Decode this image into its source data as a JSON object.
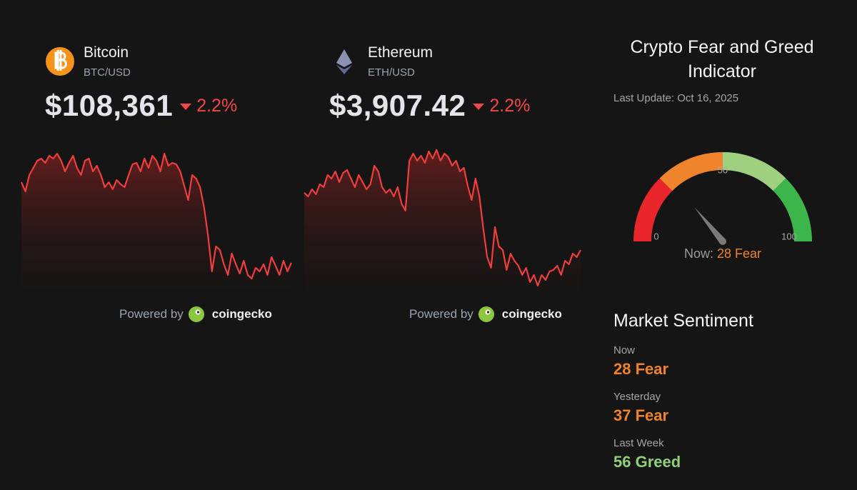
{
  "coins": [
    {
      "name": "Bitcoin",
      "pair": "BTC/USD",
      "price": "$108,361",
      "change": "2.2%",
      "icon_color": "#f7931a",
      "line_color": "#f23d3d",
      "sparkline": [
        113000,
        112350,
        113500,
        114000,
        114500,
        114650,
        114350,
        114850,
        114650,
        115000,
        114500,
        113750,
        114350,
        114850,
        114000,
        113500,
        114500,
        114650,
        113750,
        114150,
        113500,
        112650,
        113000,
        112500,
        113150,
        112850,
        112650,
        113500,
        114250,
        114350,
        113750,
        114650,
        114000,
        114850,
        114500,
        113750,
        115000,
        114150,
        114350,
        114250,
        113750,
        112750,
        111750,
        113500,
        113250,
        112650,
        111250,
        109250,
        106750,
        108500,
        108250,
        107250,
        106500,
        108000,
        107250,
        106600,
        107500,
        106500,
        106250,
        107000,
        106750,
        107250,
        106500,
        107750,
        107150,
        106500,
        107500,
        106750,
        107350
      ]
    },
    {
      "name": "Ethereum",
      "pair": "ETH/USD",
      "price": "$3,907.42",
      "change": "2.2%",
      "icon_color": "#8a92b2",
      "line_color": "#f23d3d",
      "sparkline": [
        4125,
        4112.5,
        4137.5,
        4120,
        4155,
        4145,
        4187.5,
        4175,
        4200,
        4162.5,
        4195,
        4205,
        4175,
        4145,
        4187.5,
        4162.5,
        4137.5,
        4155,
        4220,
        4200,
        4145,
        4125,
        4137.5,
        4112.5,
        4145,
        4087.5,
        4062.5,
        4237.5,
        4262.5,
        4237.5,
        4255,
        4230,
        4270,
        4245,
        4275,
        4237.5,
        4262.5,
        4250,
        4220,
        4237.5,
        4200,
        4212.5,
        4150,
        4100,
        4175,
        4112.5,
        4000,
        3900,
        3862.5,
        4005,
        3937.5,
        3925,
        3855,
        3912.5,
        3887.5,
        3870,
        3837.5,
        3862.5,
        3812.5,
        3837.5,
        3800,
        3837.5,
        3820,
        3850,
        3855,
        3870,
        3837.5,
        3887.5,
        3875,
        3912.5,
        3900,
        3925
      ]
    }
  ],
  "powered_by": "Powered by",
  "brand": "coingecko",
  "fear_greed": {
    "title": "Crypto Fear and Greed Indicator",
    "last_update": "Last Update: Oct 16, 2025",
    "gauge": {
      "type": "gauge",
      "value": 28,
      "range": [
        0,
        100
      ],
      "ticks": [
        0,
        50,
        100
      ],
      "bands": [
        {
          "from": 0,
          "to": 25,
          "color": "#e8262b"
        },
        {
          "from": 25,
          "to": 50,
          "color": "#f0842c"
        },
        {
          "from": 50,
          "to": 75,
          "color": "#9ed07f"
        },
        {
          "from": 75,
          "to": 100,
          "color": "#3cb54a"
        }
      ],
      "now_label": "Now:",
      "classification": "Fear",
      "now_color": "#f0822a"
    }
  },
  "sentiment": {
    "title": "Market Sentiment",
    "items": [
      {
        "label": "Now",
        "value": 28,
        "classification": "Fear",
        "color": "#f0822a"
      },
      {
        "label": "Yesterday",
        "value": 37,
        "classification": "Fear",
        "color": "#f0822a"
      },
      {
        "label": "Last Week",
        "value": 56,
        "classification": "Greed",
        "color": "#8fd07a"
      }
    ]
  }
}
